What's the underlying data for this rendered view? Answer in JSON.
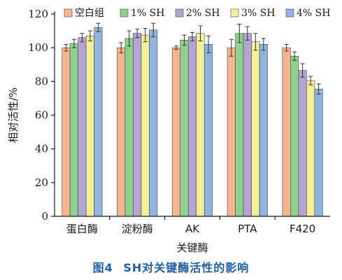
{
  "caption": {
    "number": "图4",
    "text": "SH对关键酶活性的影响"
  },
  "chart_data": {
    "type": "bar",
    "title": "",
    "xlabel": "关键酶",
    "ylabel": "相对活性/%",
    "ylim": [
      0,
      120
    ],
    "yticks": [
      0,
      20,
      40,
      60,
      80,
      100,
      120
    ],
    "grid": false,
    "legend_position": "top",
    "categories": [
      "蛋白酶",
      "淀粉酶",
      "AK",
      "PTA",
      "F420"
    ],
    "series": [
      {
        "name": "空白组",
        "color": "#f5b58f",
        "values": [
          100,
          100,
          100,
          100,
          100
        ],
        "errors": [
          2,
          3,
          1,
          5,
          2
        ]
      },
      {
        "name": "1% SH",
        "color": "#8fd08e",
        "values": [
          102.5,
          105.5,
          104.5,
          108.5,
          95
        ],
        "errors": [
          2.5,
          4.5,
          3,
          5.5,
          2.5
        ]
      },
      {
        "name": "2% SH",
        "color": "#b3a4d2",
        "values": [
          106,
          108.5,
          106.5,
          108.5,
          86.5
        ],
        "errors": [
          2.5,
          2.5,
          2.5,
          4,
          4
        ]
      },
      {
        "name": "3% SH",
        "color": "#f3f09a",
        "values": [
          107,
          107.5,
          108.5,
          103.5,
          80.5
        ],
        "errors": [
          3,
          4,
          4.5,
          5,
          2.5
        ]
      },
      {
        "name": "4% SH",
        "color": "#8fb4de",
        "values": [
          112,
          110.5,
          102,
          102,
          75.5
        ],
        "errors": [
          2.5,
          4,
          5,
          3.5,
          3
        ]
      }
    ]
  }
}
